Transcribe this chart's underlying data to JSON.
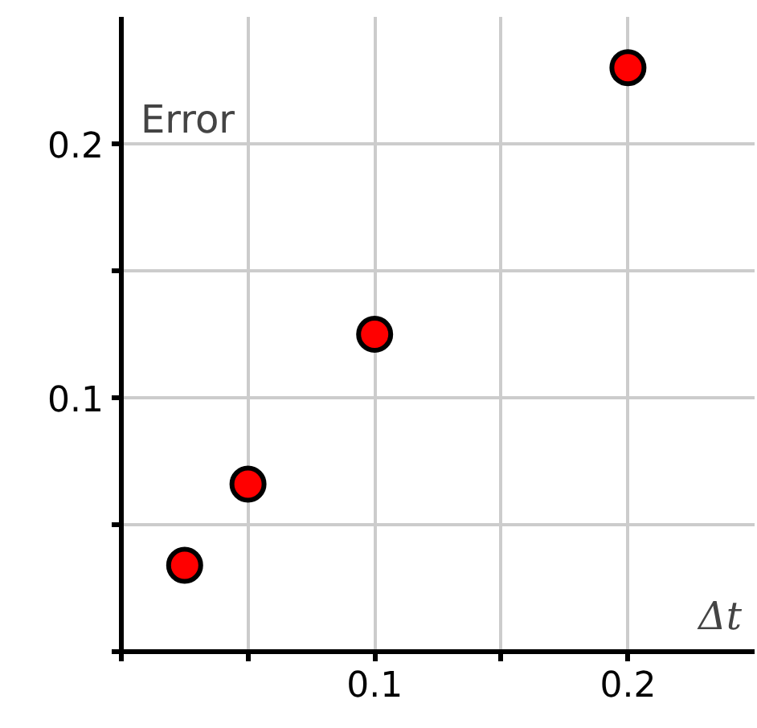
{
  "chart_data": {
    "type": "scatter",
    "xlabel": "Δt",
    "ylabel": "Error",
    "x": [
      0.025,
      0.05,
      0.1,
      0.2
    ],
    "series": [
      {
        "color": "#ff0000",
        "values": [
          0.034,
          0.066,
          0.125,
          0.23
        ]
      }
    ],
    "xlim": [
      0,
      0.25
    ],
    "ylim": [
      0,
      0.25
    ],
    "xticks": [
      {
        "value": 0,
        "label": null
      },
      {
        "value": 0.05,
        "label": null
      },
      {
        "value": 0.1,
        "label": "0.1"
      },
      {
        "value": 0.15,
        "label": null
      },
      {
        "value": 0.2,
        "label": "0.2"
      }
    ],
    "yticks": [
      {
        "value": 0,
        "label": null
      },
      {
        "value": 0.05,
        "label": null
      },
      {
        "value": 0.1,
        "label": "0.1"
      },
      {
        "value": 0.15,
        "label": null
      },
      {
        "value": 0.2,
        "label": "0.2"
      }
    ],
    "grid": true,
    "marker": "circle"
  }
}
